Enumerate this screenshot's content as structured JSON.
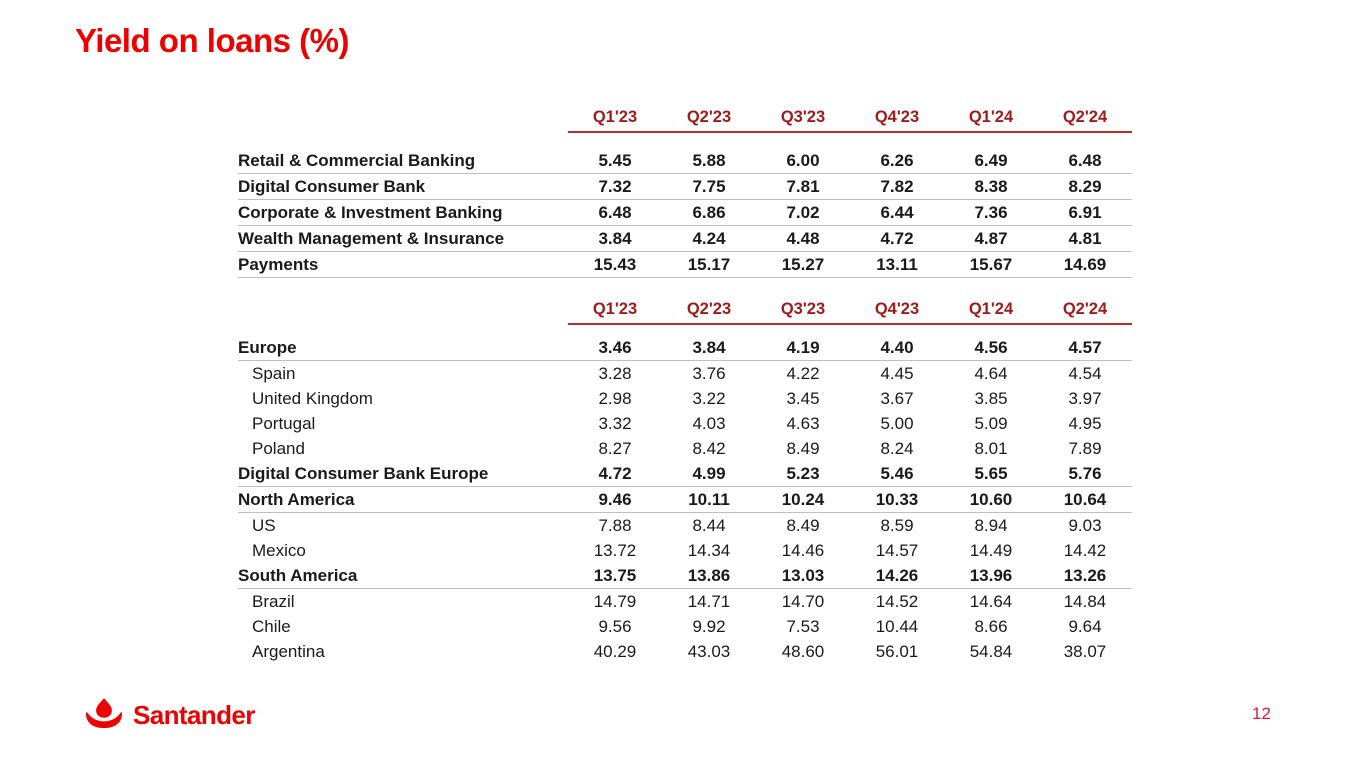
{
  "title": "Yield on loans (%)",
  "footer": {
    "logo_text": "Santander",
    "page_number": "12"
  },
  "colors": {
    "brand_red": "#EC0000",
    "header_red": "#9E1B1B",
    "separator_gray": "#BFBFBF",
    "page_number_red": "#E21937"
  },
  "tables": [
    {
      "name": "yield-by-business-segment",
      "columns": [
        "Q1'23",
        "Q2'23",
        "Q3'23",
        "Q4'23",
        "Q1'24",
        "Q2'24"
      ],
      "rows": [
        {
          "label": "Retail & Commercial Banking",
          "bold": true,
          "indent": false,
          "separator": true,
          "values": [
            "5.45",
            "5.88",
            "6.00",
            "6.26",
            "6.49",
            "6.48"
          ]
        },
        {
          "label": "Digital Consumer Bank",
          "bold": true,
          "indent": false,
          "separator": true,
          "values": [
            "7.32",
            "7.75",
            "7.81",
            "7.82",
            "8.38",
            "8.29"
          ]
        },
        {
          "label": "Corporate & Investment Banking",
          "bold": true,
          "indent": false,
          "separator": true,
          "values": [
            "6.48",
            "6.86",
            "7.02",
            "6.44",
            "7.36",
            "6.91"
          ]
        },
        {
          "label": "Wealth Management & Insurance",
          "bold": true,
          "indent": false,
          "separator": true,
          "values": [
            "3.84",
            "4.24",
            "4.48",
            "4.72",
            "4.87",
            "4.81"
          ]
        },
        {
          "label": "Payments",
          "bold": true,
          "indent": false,
          "separator": true,
          "values": [
            "15.43",
            "15.17",
            "15.27",
            "13.11",
            "15.67",
            "14.69"
          ]
        }
      ]
    },
    {
      "name": "yield-by-geography",
      "columns": [
        "Q1'23",
        "Q2'23",
        "Q3'23",
        "Q4'23",
        "Q1'24",
        "Q2'24"
      ],
      "rows": [
        {
          "label": "Europe",
          "bold": true,
          "indent": false,
          "separator": true,
          "values": [
            "3.46",
            "3.84",
            "4.19",
            "4.40",
            "4.56",
            "4.57"
          ]
        },
        {
          "label": "Spain",
          "bold": false,
          "indent": true,
          "separator": false,
          "values": [
            "3.28",
            "3.76",
            "4.22",
            "4.45",
            "4.64",
            "4.54"
          ]
        },
        {
          "label": "United Kingdom",
          "bold": false,
          "indent": true,
          "separator": false,
          "values": [
            "2.98",
            "3.22",
            "3.45",
            "3.67",
            "3.85",
            "3.97"
          ]
        },
        {
          "label": "Portugal",
          "bold": false,
          "indent": true,
          "separator": false,
          "values": [
            "3.32",
            "4.03",
            "4.63",
            "5.00",
            "5.09",
            "4.95"
          ]
        },
        {
          "label": "Poland",
          "bold": false,
          "indent": true,
          "separator": false,
          "values": [
            "8.27",
            "8.42",
            "8.49",
            "8.24",
            "8.01",
            "7.89"
          ]
        },
        {
          "label": "Digital Consumer Bank Europe",
          "bold": true,
          "indent": false,
          "separator": true,
          "values": [
            "4.72",
            "4.99",
            "5.23",
            "5.46",
            "5.65",
            "5.76"
          ]
        },
        {
          "label": "North America",
          "bold": true,
          "indent": false,
          "separator": true,
          "values": [
            "9.46",
            "10.11",
            "10.24",
            "10.33",
            "10.60",
            "10.64"
          ]
        },
        {
          "label": "US",
          "bold": false,
          "indent": true,
          "separator": false,
          "values": [
            "7.88",
            "8.44",
            "8.49",
            "8.59",
            "8.94",
            "9.03"
          ]
        },
        {
          "label": "Mexico",
          "bold": false,
          "indent": true,
          "separator": false,
          "values": [
            "13.72",
            "14.34",
            "14.46",
            "14.57",
            "14.49",
            "14.42"
          ]
        },
        {
          "label": "South America",
          "bold": true,
          "indent": false,
          "separator": true,
          "values": [
            "13.75",
            "13.86",
            "13.03",
            "14.26",
            "13.96",
            "13.26"
          ]
        },
        {
          "label": "Brazil",
          "bold": false,
          "indent": true,
          "separator": false,
          "values": [
            "14.79",
            "14.71",
            "14.70",
            "14.52",
            "14.64",
            "14.84"
          ]
        },
        {
          "label": "Chile",
          "bold": false,
          "indent": true,
          "separator": false,
          "values": [
            "9.56",
            "9.92",
            "7.53",
            "10.44",
            "8.66",
            "9.64"
          ]
        },
        {
          "label": "Argentina",
          "bold": false,
          "indent": true,
          "separator": false,
          "values": [
            "40.29",
            "43.03",
            "48.60",
            "56.01",
            "54.84",
            "38.07"
          ]
        }
      ]
    }
  ]
}
